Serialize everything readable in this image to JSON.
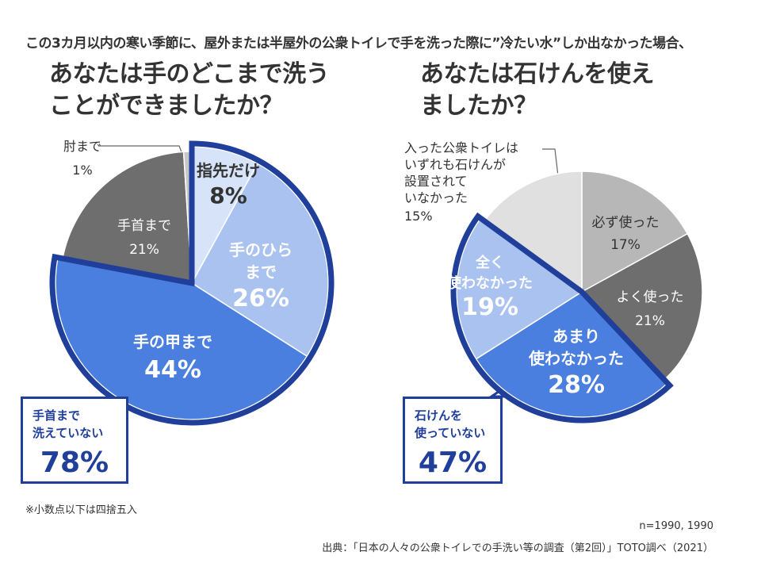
{
  "header": "この3カ月以内の寒い季節に、屋外または半屋外の公衆トイレで手を洗った際に”冷たい水”しか出なかった場合、",
  "left_question": [
    "あなたは手のどこまで洗う",
    "ことができましたか？"
  ],
  "right_question": [
    "あなたは石けんを使え",
    "ましたか？"
  ],
  "left_callout": {
    "text": "手首まで\n洗えていない",
    "percent": "78%"
  },
  "right_callout": {
    "text": "石けんを\n使っていない",
    "percent": "47%"
  },
  "note": "※小数点以下は四捨五入",
  "sample": "n=1990, 1990",
  "source": "出典：「日本の人々の公衆トイレでの手洗い等の調査（第2回）」TOTO調べ（2021）",
  "colors": {
    "pale_blue": "#d6e3f8",
    "light_blue": "#a9c2f0",
    "mid_blue": "#4a7fe0",
    "dark_gray": "#6e6e6e",
    "mid_gray": "#b7b7b7",
    "light_gray": "#e0e0e0",
    "navy": "#1f3f9a"
  },
  "chart_data": [
    {
      "type": "pie",
      "slices": [
        {
          "label": [
            "指先だけ"
          ],
          "value": 8,
          "pct_text": "8%",
          "color": "#d6e3f8"
        },
        {
          "label": [
            "手のひら",
            "まで"
          ],
          "value": 26,
          "pct_text": "26%",
          "color": "#a9c2f0"
        },
        {
          "label": [
            "手の甲まで"
          ],
          "value": 44,
          "pct_text": "44%",
          "color": "#4a7fe0"
        },
        {
          "label": [
            "手首まで"
          ],
          "value": 21,
          "pct_text": "21%",
          "color": "#6e6e6e"
        },
        {
          "label": [
            "肘まで"
          ],
          "value": 1,
          "pct_text": "1%",
          "color": "#c8c8c8"
        }
      ],
      "highlighted": [
        "指先だけ",
        "手のひらまで",
        "手の甲まで"
      ]
    },
    {
      "type": "pie",
      "slices": [
        {
          "label": [
            "必ず使った"
          ],
          "value": 17,
          "pct_text": "17%",
          "color": "#b7b7b7"
        },
        {
          "label": [
            "よく使った"
          ],
          "value": 21,
          "pct_text": "21%",
          "color": "#6e6e6e"
        },
        {
          "label": [
            "あまり",
            "使わなかった"
          ],
          "value": 28,
          "pct_text": "28%",
          "color": "#4a7fe0"
        },
        {
          "label": [
            "全く",
            "使わなかった"
          ],
          "value": 19,
          "pct_text": "19%",
          "color": "#a9c2f0"
        },
        {
          "label": [
            "入った公衆トイレは",
            "いずれも石けんが",
            "設置されて",
            "いなかった"
          ],
          "value": 15,
          "pct_text": "15%",
          "color": "#e0e0e0"
        }
      ],
      "highlighted": [
        "あまり使わなかった",
        "全く使わなかった"
      ]
    }
  ]
}
